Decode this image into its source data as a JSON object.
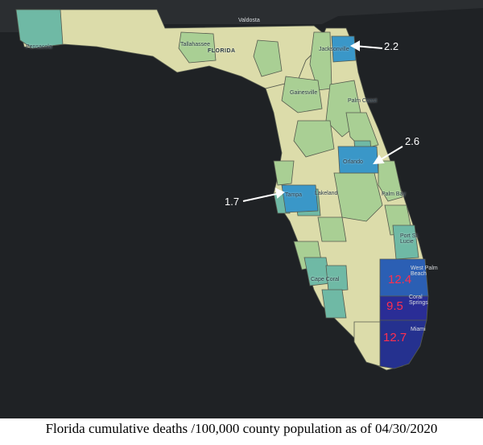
{
  "map": {
    "state_label": "FLORIDA",
    "neighbor_label": "Valdosta",
    "cities": {
      "pensacola": "Pensacola",
      "tallahassee": "Tallahassee",
      "jacksonville": "Jacksonville",
      "gainesville": "Gainesville",
      "palm_coast": "Palm Coast",
      "orlando": "Orlando",
      "lakeland": "Lakeland",
      "tampa": "Tampa",
      "palm_bay": "Palm Bay",
      "port_st_lucie": "Port St. Lucie",
      "cape_coral": "Cape Coral",
      "west_palm_beach": "West Palm Beach",
      "coral_springs": "Coral Springs",
      "miami": "Miami"
    },
    "rates": {
      "jacksonville": "2.2",
      "orlando": "2.6",
      "tampa": "1.7",
      "palm_beach": "12.4",
      "broward": "9.5",
      "miami_dade": "12.7"
    },
    "colors": {
      "ocean": "#1f2225",
      "land_outside": "#2b2e31",
      "low": "#dcdcaa",
      "mid": "#a9cf94",
      "teal": "#6fb9a5",
      "blue": "#3a97c8",
      "palm_beach": "#2b5fb4",
      "broward": "#2a2d96",
      "miami_dade": "#25318f",
      "county_border": "#555a4e"
    }
  },
  "caption": "Florida cumulative deaths /100,000 county population as of 04/30/2020"
}
